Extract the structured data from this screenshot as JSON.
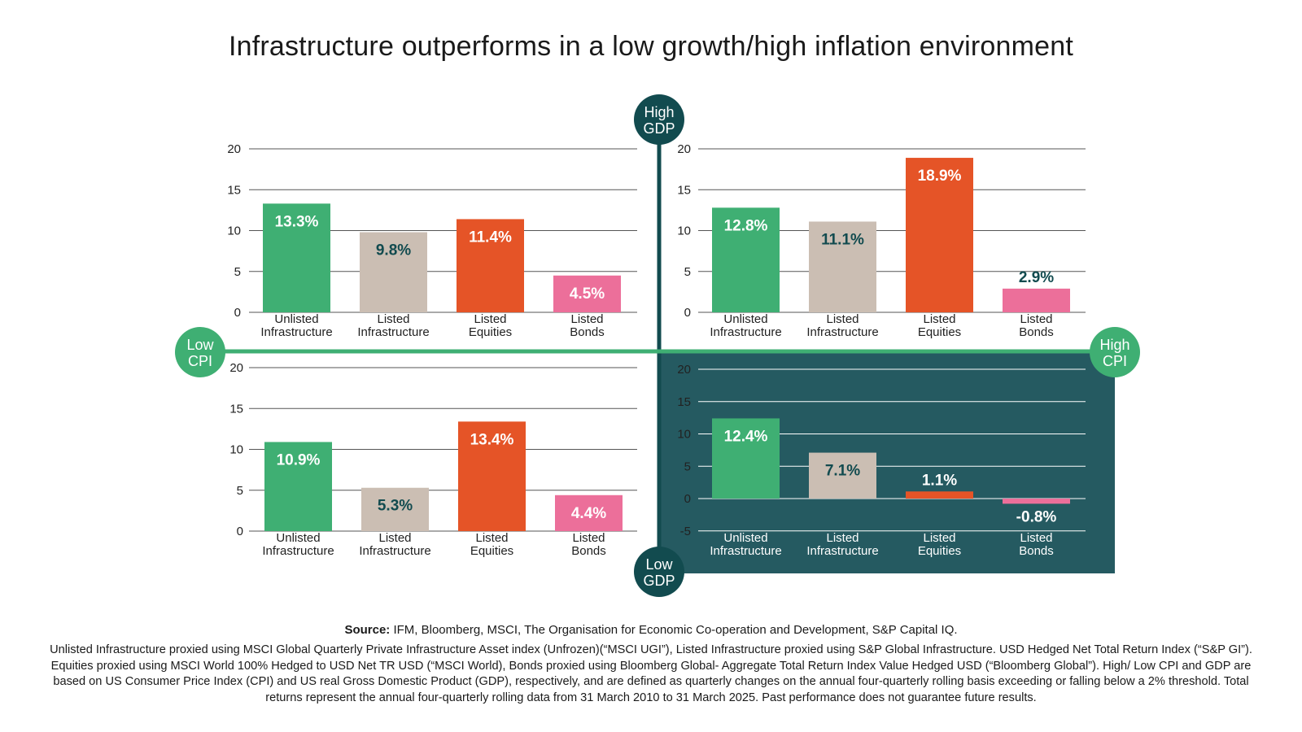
{
  "title": "Infrastructure outperforms in a low growth/high inflation environment",
  "axes": {
    "top_label": [
      "High",
      "GDP"
    ],
    "bottom_label": [
      "Low",
      "GDP"
    ],
    "left_label": [
      "Low",
      "CPI"
    ],
    "right_label": [
      "High",
      "CPI"
    ]
  },
  "colors": {
    "unlisted_infrastructure": "#3faf73",
    "listed_infrastructure": "#cbbeb3",
    "listed_equities": "#e55427",
    "listed_bonds": "#ec6f9a",
    "axis_dark": "#124b4f",
    "axis_green": "#3faf73",
    "highlight_panel": "#255a61"
  },
  "chart_data": [
    {
      "type": "bar",
      "quadrant": "High GDP / Low CPI",
      "categories": [
        [
          "Unlisted",
          "Infrastructure"
        ],
        [
          "Listed",
          "Infrastructure"
        ],
        [
          "Listed",
          "Equities"
        ],
        [
          "Listed",
          "Bonds"
        ]
      ],
      "values": [
        13.3,
        9.8,
        11.4,
        4.5
      ],
      "value_labels": [
        "13.3%",
        "9.8%",
        "11.4%",
        "4.5%"
      ],
      "ylim": [
        0,
        20
      ],
      "yticks": [
        "20",
        "15",
        "10",
        "5",
        "0"
      ],
      "grid": true
    },
    {
      "type": "bar",
      "quadrant": "High GDP / High CPI",
      "categories": [
        [
          "Unlisted",
          "Infrastructure"
        ],
        [
          "Listed",
          "Infrastructure"
        ],
        [
          "Listed",
          "Equities"
        ],
        [
          "Listed",
          "Bonds"
        ]
      ],
      "values": [
        12.8,
        11.1,
        18.9,
        2.9
      ],
      "value_labels": [
        "12.8%",
        "11.1%",
        "18.9%",
        "2.9%"
      ],
      "ylim": [
        0,
        20
      ],
      "yticks": [
        "20",
        "15",
        "10",
        "5",
        "0"
      ],
      "grid": true
    },
    {
      "type": "bar",
      "quadrant": "Low GDP / Low CPI",
      "categories": [
        [
          "Unlisted",
          "Infrastructure"
        ],
        [
          "Listed",
          "Infrastructure"
        ],
        [
          "Listed",
          "Equities"
        ],
        [
          "Listed",
          "Bonds"
        ]
      ],
      "values": [
        10.9,
        5.3,
        13.4,
        4.4
      ],
      "value_labels": [
        "10.9%",
        "5.3%",
        "13.4%",
        "4.4%"
      ],
      "ylim": [
        0,
        20
      ],
      "yticks": [
        "20",
        "15",
        "10",
        "5",
        "0"
      ],
      "grid": true
    },
    {
      "type": "bar",
      "quadrant": "Low GDP / High CPI",
      "categories": [
        [
          "Unlisted",
          "Infrastructure"
        ],
        [
          "Listed",
          "Infrastructure"
        ],
        [
          "Listed",
          "Equities"
        ],
        [
          "Listed",
          "Bonds"
        ]
      ],
      "values": [
        12.4,
        7.1,
        1.1,
        -0.8
      ],
      "value_labels": [
        "12.4%",
        "7.1%",
        "1.1%",
        "-0.8%"
      ],
      "ylim": [
        -5,
        20
      ],
      "yticks": [
        "20",
        "15",
        "10",
        "5",
        "0",
        "-5"
      ],
      "grid": true,
      "highlighted": true
    }
  ],
  "source_label": "Source:",
  "source_text": " IFM, Bloomberg, MSCI, The Organisation for Economic Co-operation and Development, S&P Capital IQ.",
  "footnote": "Unlisted Infrastructure proxied using MSCI Global Quarterly Private Infrastructure Asset index (Unfrozen)(“MSCI UGI”), Listed Infrastructure proxied using S&P Global Infrastructure. USD Hedged Net Total Return Index (“S&P GI”). Equities proxied using MSCI World 100% Hedged to USD Net TR USD (“MSCI World), Bonds proxied using Bloomberg Global- Aggregate Total Return Index Value Hedged USD (“Bloomberg Global”). High/ Low CPI and GDP are based on US Consumer Price Index (CPI) and US real Gross Domestic Product (GDP), respectively, and are defined as quarterly changes on the annual four-quarterly rolling basis exceeding or falling below a 2% threshold. Total returns represent the annual four-quarterly rolling data from 31 March 2010 to 31 March 2025. Past performance does not guarantee future results."
}
